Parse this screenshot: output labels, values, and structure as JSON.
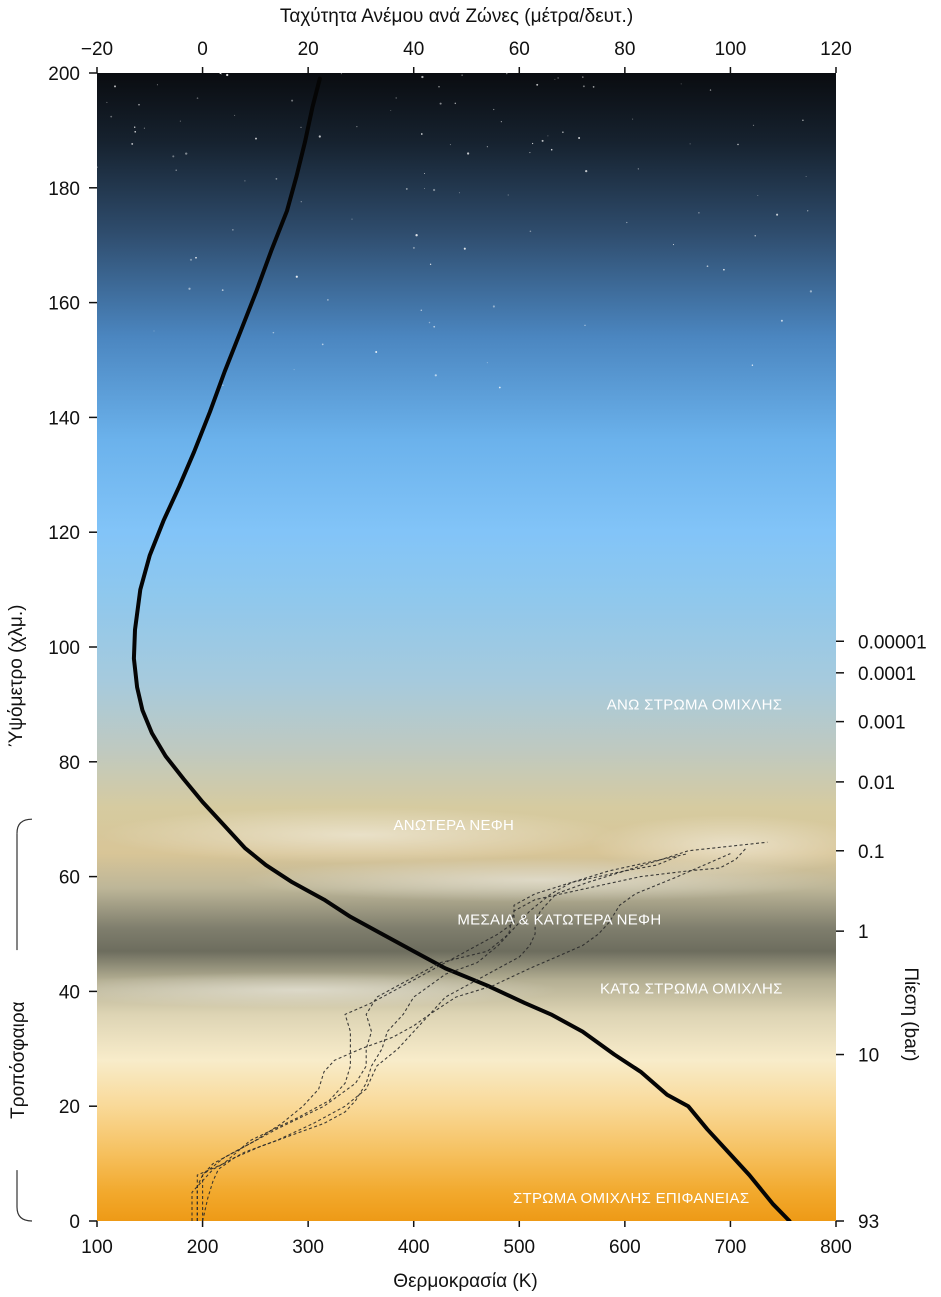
{
  "chart_data": {
    "type": "line",
    "top_axis": {
      "title": "Ταχύτητα Ανέμου ανά Ζώνες (μέτρα/δευτ.)",
      "range": [
        -20,
        120
      ],
      "ticks": [
        -20,
        0,
        20,
        40,
        60,
        80,
        100,
        120
      ]
    },
    "bottom_axis": {
      "title": "Θερμοκρασία (K)",
      "range": [
        100,
        800
      ],
      "ticks": [
        100,
        200,
        300,
        400,
        500,
        600,
        700,
        800
      ]
    },
    "left_axis": {
      "title": "Ύψόμετρο (χλμ.)",
      "range": [
        0,
        200
      ],
      "ticks": [
        0,
        20,
        40,
        60,
        80,
        100,
        120,
        140,
        160,
        180,
        200
      ]
    },
    "right_axis": {
      "title": "Πίεση (bar)",
      "ticks": [
        {
          "label": "0.00001",
          "altitude": 101
        },
        {
          "label": "0.0001",
          "altitude": 95.5
        },
        {
          "label": "0.001",
          "altitude": 87
        },
        {
          "label": "0.01",
          "altitude": 76.5
        },
        {
          "label": "0.1",
          "altitude": 64.5
        },
        {
          "label": "1",
          "altitude": 50.5
        },
        {
          "label": "10",
          "altitude": 29
        },
        {
          "label": "93",
          "altitude": 0
        }
      ]
    },
    "bracket_label": "Τροπόσφαιρα",
    "bracket_range": [
      0,
      70
    ],
    "layer_labels": [
      {
        "text": "ΑΝΩ ΣΤΡΩΜΑ ΟΜΙΧΛΗΣ",
        "altitude": 90,
        "x_temp": 666
      },
      {
        "text": "ΑΝΩΤΕΡΑ ΝΕΦΗ",
        "altitude": 69,
        "x_temp": 438
      },
      {
        "text": "ΜΕΣΑΙΑ & ΚΑΤΩΤΕΡΑ ΝΕΦΗ",
        "altitude": 52.5,
        "x_temp": 538
      },
      {
        "text": "ΚΑΤΩ ΣΤΡΩΜΑ ΟΜΙΧΛΗΣ",
        "altitude": 40.5,
        "x_temp": 663
      },
      {
        "text": "ΣΤΡΩΜΑ ΟΜΙΧΛΗΣ ΕΠΙΦΑΝΕΙΑΣ",
        "altitude": 4,
        "x_temp": 606
      }
    ],
    "series": [
      {
        "axis": "temperature",
        "style": "solid",
        "points": [
          [
            756,
            0
          ],
          [
            740,
            3
          ],
          [
            718,
            8
          ],
          [
            698,
            12
          ],
          [
            678,
            16
          ],
          [
            660,
            20
          ],
          [
            640,
            22
          ],
          [
            615,
            26
          ],
          [
            590,
            29
          ],
          [
            560,
            33
          ],
          [
            530,
            36
          ],
          [
            505,
            38
          ],
          [
            470,
            41
          ],
          [
            430,
            44
          ],
          [
            400,
            47
          ],
          [
            370,
            50
          ],
          [
            340,
            53
          ],
          [
            315,
            56
          ],
          [
            285,
            59
          ],
          [
            260,
            62
          ],
          [
            240,
            65
          ],
          [
            220,
            69
          ],
          [
            200,
            73
          ],
          [
            182,
            77
          ],
          [
            165,
            81
          ],
          [
            152,
            85
          ],
          [
            143,
            89
          ],
          [
            138,
            93
          ],
          [
            135,
            98
          ],
          [
            136,
            103
          ],
          [
            141,
            110
          ],
          [
            150,
            116
          ],
          [
            163,
            122
          ],
          [
            178,
            128
          ],
          [
            192,
            134
          ],
          [
            207,
            141
          ],
          [
            221,
            148
          ],
          [
            236,
            155
          ],
          [
            251,
            162
          ],
          [
            265,
            169
          ],
          [
            280,
            176
          ],
          [
            289,
            182
          ],
          [
            297,
            188
          ],
          [
            304,
            194
          ],
          [
            311,
            199
          ]
        ]
      },
      {
        "axis": "wind",
        "style": "dashed",
        "points": [
          [
            -1,
            0
          ],
          [
            -1,
            4
          ],
          [
            -1,
            8
          ],
          [
            4,
            10
          ],
          [
            9,
            14
          ],
          [
            18,
            18
          ],
          [
            24,
            21
          ],
          [
            27,
            24
          ],
          [
            28,
            27
          ],
          [
            28,
            30
          ],
          [
            28,
            33
          ],
          [
            27,
            36
          ],
          [
            32,
            38
          ],
          [
            38,
            41
          ],
          [
            44,
            44
          ],
          [
            50,
            47
          ],
          [
            56,
            50
          ],
          [
            59,
            52
          ],
          [
            59,
            55
          ],
          [
            63,
            57
          ],
          [
            70,
            59
          ],
          [
            77,
            61
          ],
          [
            82,
            62
          ],
          [
            87,
            63
          ],
          [
            92,
            64.5
          ],
          [
            97,
            65
          ],
          [
            107,
            66
          ]
        ]
      },
      {
        "axis": "wind",
        "style": "dashed",
        "points": [
          [
            0,
            0
          ],
          [
            0,
            4
          ],
          [
            0,
            8
          ],
          [
            4,
            11
          ],
          [
            14,
            16
          ],
          [
            23,
            20
          ],
          [
            29,
            24
          ],
          [
            31,
            27
          ],
          [
            31,
            30
          ],
          [
            32,
            33
          ],
          [
            31,
            36
          ],
          [
            33,
            39
          ],
          [
            39,
            42
          ],
          [
            45,
            45
          ],
          [
            54,
            47
          ],
          [
            58,
            50
          ],
          [
            59,
            54
          ],
          [
            63,
            56
          ],
          [
            73,
            58
          ],
          [
            83,
            60
          ],
          [
            92,
            61
          ],
          [
            98,
            61.5
          ],
          [
            101,
            63
          ],
          [
            103,
            65
          ]
        ]
      },
      {
        "axis": "wind",
        "style": "dashed",
        "points": [
          [
            -2,
            0
          ],
          [
            -2,
            5
          ],
          [
            2,
            9
          ],
          [
            8,
            12
          ],
          [
            14,
            14
          ],
          [
            21,
            17
          ],
          [
            27,
            20
          ],
          [
            31,
            23
          ],
          [
            33,
            27
          ],
          [
            37,
            30
          ],
          [
            40,
            33
          ],
          [
            43,
            36
          ],
          [
            46,
            39
          ],
          [
            52,
            42
          ],
          [
            56,
            44
          ],
          [
            60,
            46
          ],
          [
            62,
            48
          ],
          [
            63,
            50
          ],
          [
            63,
            52
          ],
          [
            64,
            54
          ],
          [
            67,
            57
          ],
          [
            73,
            59
          ],
          [
            80,
            61
          ],
          [
            87,
            63
          ],
          [
            92,
            64
          ]
        ]
      },
      {
        "axis": "wind",
        "style": "dashed",
        "points": [
          [
            0,
            0
          ],
          [
            1,
            4
          ],
          [
            2,
            7
          ],
          [
            3,
            9
          ],
          [
            6,
            11
          ],
          [
            11,
            13
          ],
          [
            17,
            15
          ],
          [
            23,
            17
          ],
          [
            27,
            19
          ],
          [
            29,
            21
          ],
          [
            31,
            24
          ],
          [
            32,
            27
          ],
          [
            34,
            30
          ],
          [
            35,
            33
          ],
          [
            38,
            36
          ],
          [
            40,
            39
          ],
          [
            43,
            41
          ],
          [
            46,
            43
          ],
          [
            52,
            45
          ],
          [
            56,
            48
          ],
          [
            59,
            51
          ],
          [
            62,
            54
          ],
          [
            66,
            57
          ],
          [
            70,
            59
          ],
          [
            75,
            60
          ],
          [
            80,
            61
          ],
          [
            86,
            62
          ],
          [
            90,
            63.5
          ]
        ]
      },
      {
        "axis": "wind",
        "style": "dashed",
        "points": [
          [
            -1,
            0
          ],
          [
            -1,
            6
          ],
          [
            0,
            8
          ],
          [
            2,
            10
          ],
          [
            6,
            12
          ],
          [
            10,
            14
          ],
          [
            15,
            17
          ],
          [
            19,
            20
          ],
          [
            22,
            23
          ],
          [
            23,
            26
          ],
          [
            25,
            28
          ],
          [
            30,
            30
          ],
          [
            36,
            32
          ],
          [
            40,
            34
          ],
          [
            43,
            36
          ],
          [
            48,
            39
          ],
          [
            55,
            41
          ],
          [
            62,
            44
          ],
          [
            67,
            46
          ],
          [
            72,
            48
          ],
          [
            75,
            50
          ],
          [
            77,
            52
          ],
          [
            79,
            55
          ],
          [
            82,
            57
          ],
          [
            90,
            60
          ],
          [
            95,
            62
          ],
          [
            100,
            64
          ]
        ]
      }
    ]
  }
}
